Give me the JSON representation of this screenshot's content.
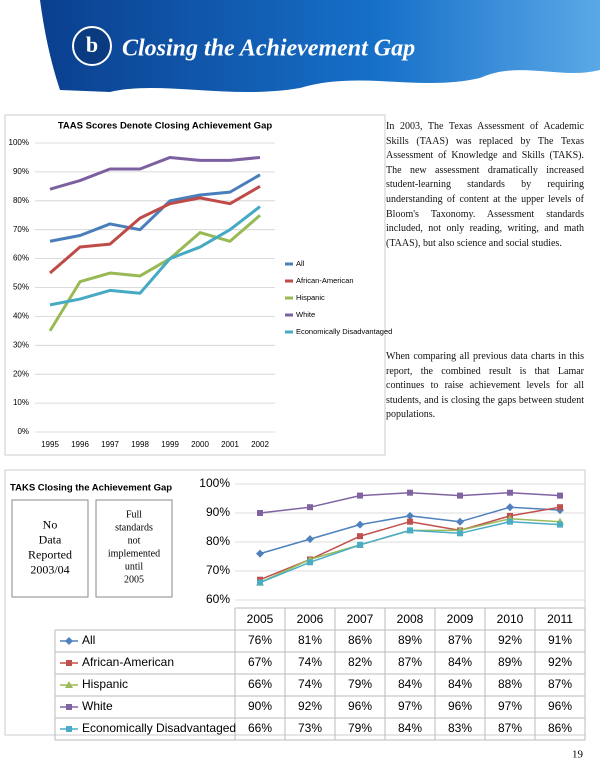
{
  "header": {
    "title": "Closing the Achievement Gap"
  },
  "paragraphs": [
    "In 2003, The Texas Assessment of Academic Skills (TAAS) was replaced by The Texas Assessment of Knowledge and Skills (TAKS). The new assessment dramatically increased student-learning standards by requiring understanding of content at the upper levels of Bloom's Taxonomy. Assessment standards included, not only reading, writing, and math (TAAS), but also science and social studies.",
    "When comparing all previous data charts in this report, the combined result is that Lamar continues to raise achievement levels for all students, and is closing the gaps between student populations."
  ],
  "page_number": "19",
  "chart_data": [
    {
      "type": "line",
      "title": "TAAS Scores Denote Closing Achievement Gap",
      "categories": [
        "1995",
        "1996",
        "1997",
        "1998",
        "1999",
        "2000",
        "2001",
        "2002"
      ],
      "series": [
        {
          "name": "All",
          "color": "#4a7ebb",
          "values": [
            66,
            68,
            72,
            70,
            80,
            82,
            83,
            89
          ]
        },
        {
          "name": "African-American",
          "color": "#be4b48",
          "values": [
            55,
            64,
            65,
            74,
            79,
            81,
            79,
            85
          ]
        },
        {
          "name": "Hispanic",
          "color": "#98b954",
          "values": [
            35,
            52,
            55,
            54,
            60,
            69,
            66,
            75
          ]
        },
        {
          "name": "White",
          "color": "#7d60a0",
          "values": [
            84,
            87,
            91,
            91,
            95,
            94,
            94,
            95
          ]
        },
        {
          "name": "Economically Disadvantaged",
          "color": "#46aac5",
          "values": [
            44,
            46,
            49,
            48,
            60,
            64,
            70,
            78
          ]
        }
      ],
      "ylim": [
        0,
        100
      ],
      "yticks": [
        {
          "value": 0,
          "label": "0%"
        },
        {
          "value": 10,
          "label": "10%"
        },
        {
          "value": 20,
          "label": "20%"
        },
        {
          "value": 30,
          "label": "30%"
        },
        {
          "value": 40,
          "label": "40%"
        },
        {
          "value": 50,
          "label": "50%"
        },
        {
          "value": 60,
          "label": "60%"
        },
        {
          "value": 70,
          "label": "70%"
        },
        {
          "value": 80,
          "label": "80%"
        },
        {
          "value": 90,
          "label": "90%"
        },
        {
          "value": 100,
          "label": "100%"
        }
      ],
      "grid": true,
      "legend": "right"
    },
    {
      "type": "line",
      "title": "TAKS Closing the Achievement Gap",
      "notes": [
        "No Data Reported 2003/04",
        "Full standards not implemented until 2005"
      ],
      "categories": [
        "2005",
        "2006",
        "2007",
        "2008",
        "2009",
        "2010",
        "2011"
      ],
      "series": [
        {
          "name": "All",
          "color": "#4f81bd",
          "marker": "diamond",
          "values": [
            76,
            81,
            86,
            89,
            87,
            92,
            91
          ],
          "value_labels": [
            "76%",
            "81%",
            "86%",
            "89%",
            "87%",
            "92%",
            "91%"
          ]
        },
        {
          "name": "African-American",
          "color": "#c0504d",
          "marker": "square",
          "values": [
            67,
            74,
            82,
            87,
            84,
            89,
            92
          ],
          "value_labels": [
            "67%",
            "74%",
            "82%",
            "87%",
            "84%",
            "89%",
            "92%"
          ]
        },
        {
          "name": "Hispanic",
          "color": "#9bbb59",
          "marker": "triangle",
          "values": [
            66,
            74,
            79,
            84,
            84,
            88,
            87
          ],
          "value_labels": [
            "66%",
            "74%",
            "79%",
            "84%",
            "84%",
            "88%",
            "87%"
          ]
        },
        {
          "name": "White",
          "color": "#8064a2",
          "marker": "square",
          "values": [
            90,
            92,
            96,
            97,
            96,
            97,
            96
          ],
          "value_labels": [
            "90%",
            "92%",
            "96%",
            "97%",
            "96%",
            "97%",
            "96%"
          ]
        },
        {
          "name": "Economically Disadvantaged",
          "color": "#4bacc6",
          "marker": "square",
          "values": [
            66,
            73,
            79,
            84,
            83,
            87,
            86
          ],
          "value_labels": [
            "66%",
            "73%",
            "79%",
            "84%",
            "83%",
            "87%",
            "86%"
          ]
        }
      ],
      "ylim": [
        60,
        100
      ],
      "yticks": [
        {
          "value": 60,
          "label": "60%"
        },
        {
          "value": 70,
          "label": "70%"
        },
        {
          "value": 80,
          "label": "80%"
        },
        {
          "value": 90,
          "label": "90%"
        },
        {
          "value": 100,
          "label": "100%"
        }
      ],
      "grid": true,
      "legend": "table"
    }
  ]
}
